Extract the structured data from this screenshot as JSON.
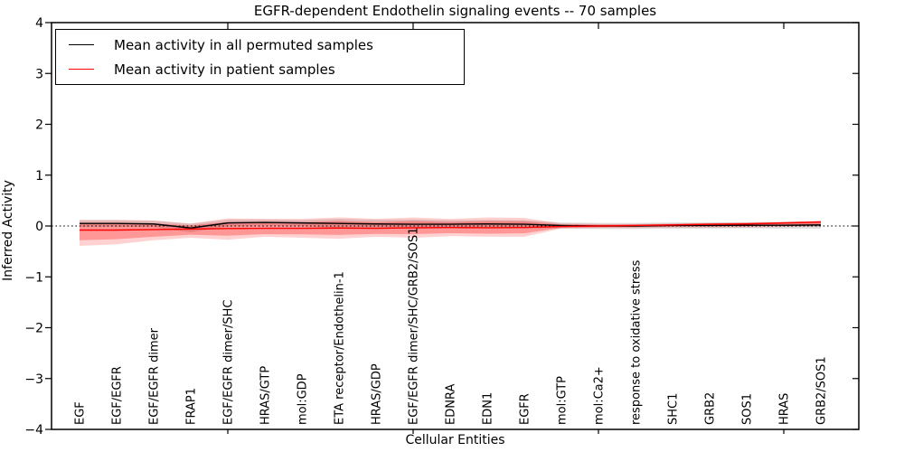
{
  "chart_data": {
    "type": "line",
    "title": "EGFR-dependent Endothelin signaling events -- 70 samples",
    "xlabel": "Cellular Entities",
    "ylabel": "Inferred Activity",
    "ylim": [
      -4,
      4
    ],
    "yticks": [
      4,
      3,
      2,
      1,
      0,
      -1,
      -2,
      -3,
      -4
    ],
    "xtick_indices": [
      4,
      9,
      14,
      19
    ],
    "grid": false,
    "legend_position": "upper-left",
    "zero_reference_line": 0,
    "categories": [
      "EGF",
      "EGF/EGFR",
      "EGF/EGFR dimer",
      "FRAP1",
      "EGF/EGFR dimer/SHC",
      "HRAS/GTP",
      "mol:GDP",
      "ETA receptor/Endothelin-1",
      "HRAS/GDP",
      "EGF/EGFR dimer/SHC/GRB2/SOS1",
      "EDNRA",
      "EDN1",
      "EGFR",
      "mol:GTP",
      "mol:Ca2+",
      "response to oxidative stress",
      "SHC1",
      "GRB2",
      "SOS1",
      "HRAS",
      "GRB2/SOS1"
    ],
    "series": [
      {
        "name": "Mean activity in all permuted samples",
        "color": "#000000",
        "values": [
          0.05,
          0.05,
          0.04,
          -0.04,
          0.06,
          0.07,
          0.06,
          0.05,
          0.04,
          0.035,
          0.035,
          0.04,
          0.035,
          0.01,
          0.0,
          0.0,
          0.01,
          0.01,
          0.015,
          0.015,
          0.02
        ]
      },
      {
        "name": "Mean activity in patient samples",
        "color": "#ff0000",
        "values": [
          -0.08,
          -0.08,
          -0.07,
          -0.06,
          -0.05,
          -0.045,
          -0.045,
          -0.04,
          -0.045,
          -0.035,
          -0.03,
          -0.035,
          -0.03,
          -0.01,
          0.0,
          0.01,
          0.02,
          0.035,
          0.04,
          0.06,
          0.08
        ]
      }
    ],
    "bands": {
      "permuted": {
        "color": "rgba(0,0,0,0.13)",
        "upper": [
          0.115,
          0.115,
          0.105,
          0.045,
          0.13,
          0.13,
          0.12,
          0.14,
          0.125,
          0.13,
          0.115,
          0.12,
          0.115,
          0.07,
          0.06,
          0.06,
          0.07,
          0.07,
          0.075,
          0.08,
          0.09
        ],
        "lower": [
          -0.015,
          -0.015,
          -0.025,
          -0.125,
          -0.01,
          0.01,
          0.0,
          -0.04,
          -0.045,
          -0.06,
          -0.045,
          -0.04,
          -0.045,
          -0.05,
          -0.06,
          -0.06,
          -0.05,
          -0.05,
          -0.045,
          -0.05,
          -0.05
        ]
      },
      "patient_outer": {
        "color": "rgba(255,0,0,0.18)",
        "upper": [
          0.12,
          0.12,
          0.11,
          0.05,
          0.15,
          0.14,
          0.14,
          0.17,
          0.14,
          0.17,
          0.14,
          0.17,
          0.16,
          0.05,
          0.04,
          0.04,
          0.05,
          0.06,
          0.07,
          0.08,
          0.1
        ],
        "lower": [
          -0.39,
          -0.36,
          -0.28,
          -0.23,
          -0.27,
          -0.21,
          -0.23,
          -0.25,
          -0.21,
          -0.23,
          -0.2,
          -0.21,
          -0.21,
          -0.05,
          -0.04,
          -0.04,
          -0.03,
          -0.03,
          -0.03,
          -0.02,
          -0.01
        ]
      },
      "patient_inner": {
        "color": "rgba(255,0,0,0.28)",
        "upper": [
          0.05,
          0.05,
          0.047,
          0.011,
          0.08,
          0.075,
          0.075,
          0.097,
          0.075,
          0.098,
          0.08,
          0.098,
          0.094,
          0.029,
          0.026,
          0.03,
          0.04,
          0.051,
          0.06,
          0.073,
          0.093
        ],
        "lower": [
          -0.28,
          -0.26,
          -0.21,
          -0.17,
          -0.19,
          -0.16,
          -0.165,
          -0.175,
          -0.155,
          -0.16,
          -0.14,
          -0.15,
          -0.145,
          -0.035,
          -0.025,
          -0.02,
          -0.012,
          -0.007,
          -0.005,
          0.008,
          0.022
        ]
      }
    }
  }
}
